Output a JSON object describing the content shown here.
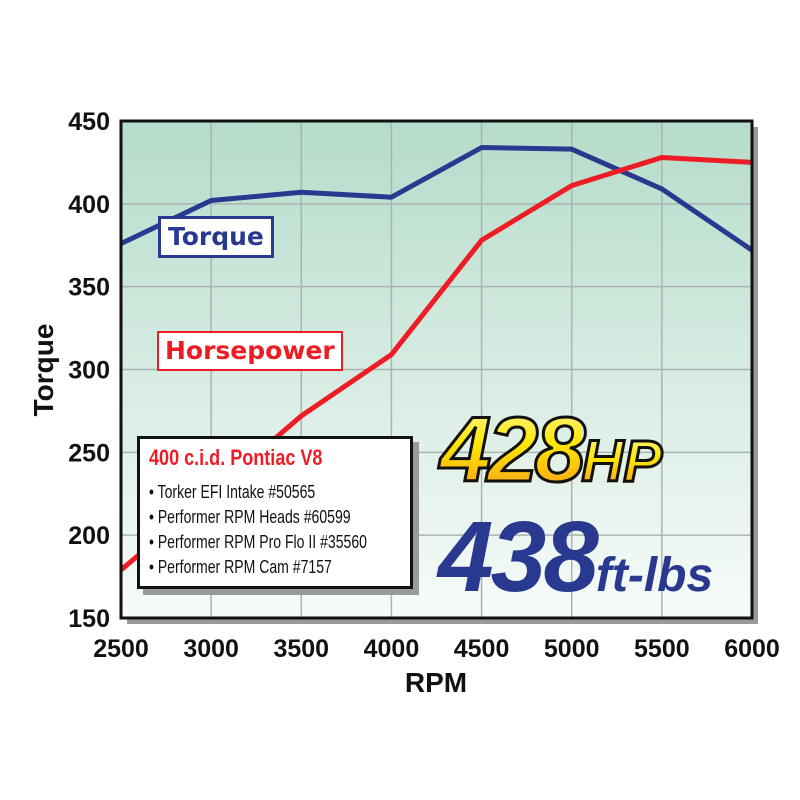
{
  "chart_data": {
    "type": "line",
    "xlabel": "RPM",
    "ylabel": "Torque",
    "xlim": [
      2500,
      6000
    ],
    "ylim": [
      150,
      450
    ],
    "x_ticks": [
      "2500",
      "3000",
      "3500",
      "4000",
      "4500",
      "5000",
      "5500",
      "6000"
    ],
    "y_ticks": [
      "150",
      "200",
      "250",
      "300",
      "350",
      "400",
      "450"
    ],
    "grid": true,
    "x": [
      2500,
      3000,
      3500,
      4000,
      4500,
      5000,
      5500,
      6000
    ],
    "series": [
      {
        "name": "Torque",
        "color": "#2a3990",
        "values": [
          376,
          402,
          407,
          404,
          434,
          433,
          409,
          372
        ]
      },
      {
        "name": "Horsepower",
        "color": "#ee1c25",
        "values": [
          179,
          225,
          272,
          309,
          378,
          411,
          428,
          425
        ]
      }
    ]
  },
  "spec_box": {
    "title": "400 c.i.d. Pontiac V8",
    "items": [
      "• Torker EFI Intake #50565",
      "• Performer RPM Heads #60599",
      "• Performer RPM Pro Flo II #35560",
      "• Performer RPM Cam #7157"
    ]
  },
  "headline": {
    "hp_value": "428",
    "hp_unit": "HP",
    "torque_value": "438",
    "torque_unit": "ft-lbs"
  },
  "colors": {
    "plot_top": "#b5dcca",
    "plot_bottom": "#f7fbf9"
  }
}
